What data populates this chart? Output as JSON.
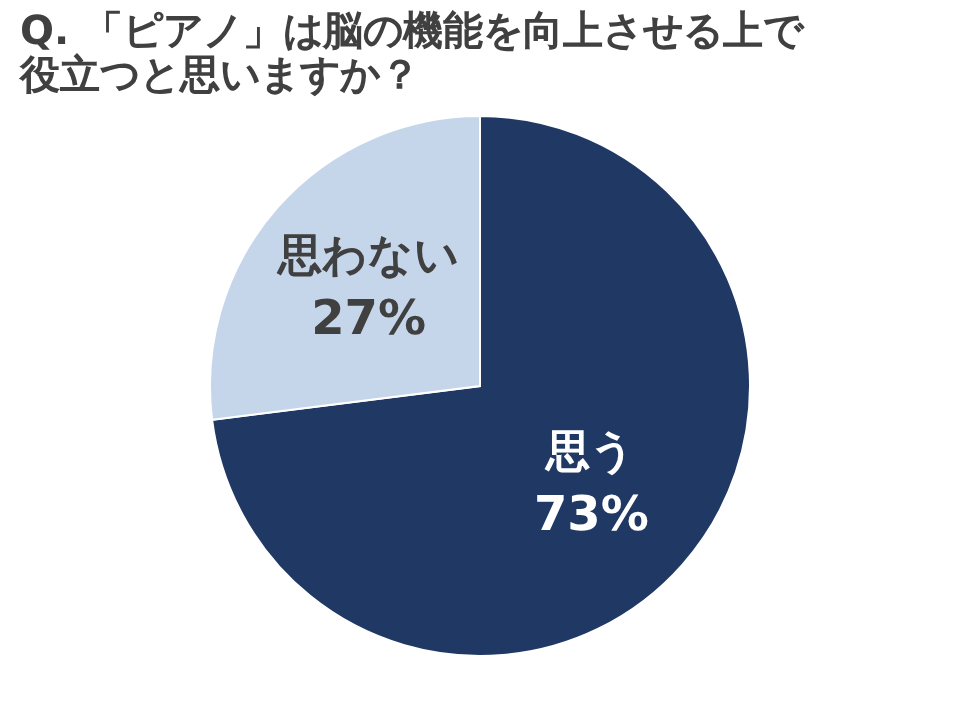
{
  "chart_data": {
    "type": "pie",
    "title": "Q. 「ピアノ」は脳の機能を向上させる上で役立つと思いますか？",
    "categories": [
      "思う",
      "思わない"
    ],
    "values": [
      73,
      27
    ],
    "value_labels": [
      "73%",
      "27%"
    ],
    "colors": [
      "#1f3864",
      "#c5d5ea"
    ],
    "legend": false
  }
}
